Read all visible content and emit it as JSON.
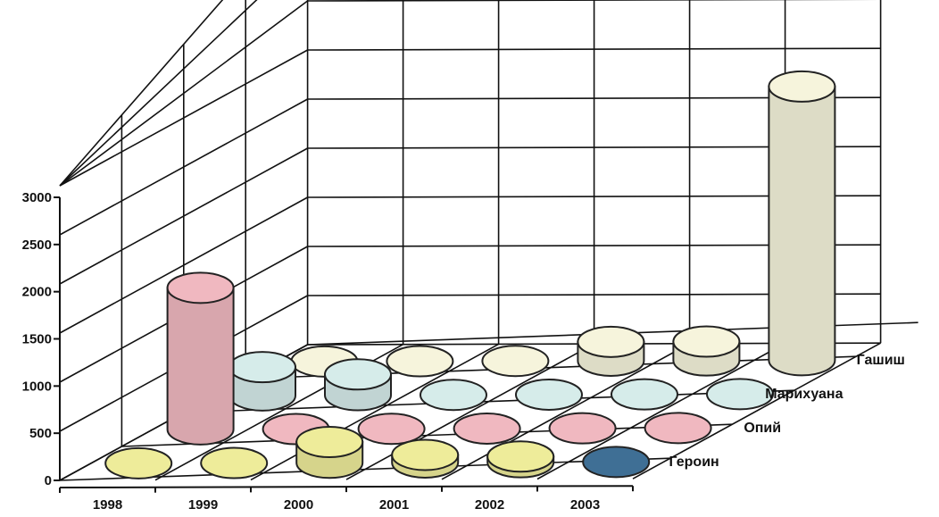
{
  "chart_data": {
    "type": "bar",
    "categories": [
      "1998",
      "1999",
      "2000",
      "2001",
      "2002",
      "2003"
    ],
    "series": [
      {
        "name": "Героин",
        "color": "#eeec9a",
        "values": [
          0,
          0,
          220,
          80,
          60,
          0
        ]
      },
      {
        "name": "Опий",
        "color": "#f0b8c0",
        "values": [
          1500,
          0,
          0,
          0,
          0,
          0
        ]
      },
      {
        "name": "Марихуана",
        "color": "#d6ecea",
        "values": [
          300,
          220,
          0,
          0,
          0,
          0
        ]
      },
      {
        "name": "Гашиш",
        "color": "#f6f4dc",
        "values": [
          0,
          0,
          0,
          200,
          200,
          2900
        ]
      }
    ],
    "point_colors": {
      "Героин-2003": "#3f6f95"
    },
    "y_ticks": [
      "0",
      "500",
      "1000",
      "1500",
      "2000",
      "2500",
      "3000"
    ],
    "ylim": [
      0,
      3000
    ],
    "grid": true
  }
}
